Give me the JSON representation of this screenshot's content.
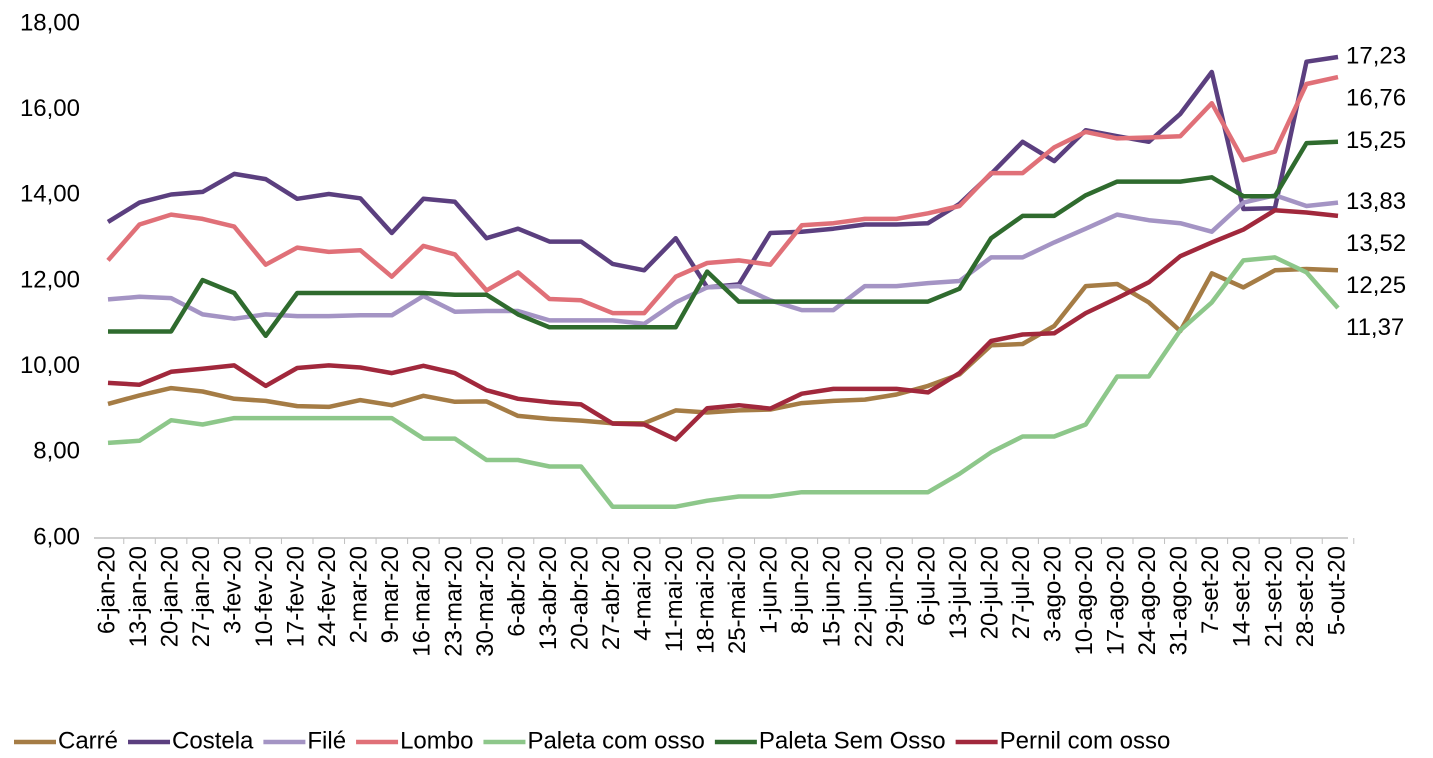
{
  "chart_data": {
    "type": "line",
    "categories": [
      "6-jan-20",
      "13-jan-20",
      "20-jan-20",
      "27-jan-20",
      "3-fev-20",
      "10-fev-20",
      "17-fev-20",
      "24-fev-20",
      "2-mar-20",
      "9-mar-20",
      "16-mar-20",
      "23-mar-20",
      "30-mar-20",
      "6-abr-20",
      "13-abr-20",
      "20-abr-20",
      "27-abr-20",
      "4-mai-20",
      "11-mai-20",
      "18-mai-20",
      "25-mai-20",
      "1-jun-20",
      "8-jun-20",
      "15-jun-20",
      "22-jun-20",
      "29-jun-20",
      "6-jul-20",
      "13-jul-20",
      "20-jul-20",
      "27-jul-20",
      "3-ago-20",
      "10-ago-20",
      "17-ago-20",
      "24-ago-20",
      "31-ago-20",
      "7-set-20",
      "14-set-20",
      "21-set-20",
      "28-set-20",
      "5-out-20"
    ],
    "ylim": [
      6,
      18
    ],
    "yticks": [
      {
        "value": 6,
        "label": "6,00"
      },
      {
        "value": 8,
        "label": "8,00"
      },
      {
        "value": 10,
        "label": "10,00"
      },
      {
        "value": 12,
        "label": "12,00"
      },
      {
        "value": 14,
        "label": "14,00"
      },
      {
        "value": 16,
        "label": "16,00"
      },
      {
        "value": 18,
        "label": "18,00"
      }
    ],
    "grid": false,
    "legend": "bottom",
    "series": [
      {
        "name": "Carré",
        "color": "#a57c45",
        "values": [
          9.13,
          9.33,
          9.5,
          9.42,
          9.25,
          9.2,
          9.08,
          9.06,
          9.22,
          9.1,
          9.32,
          9.18,
          9.19,
          8.85,
          8.78,
          8.74,
          8.68,
          8.68,
          8.98,
          8.93,
          8.98,
          9.0,
          9.15,
          9.2,
          9.23,
          9.35,
          9.55,
          9.82,
          10.5,
          10.53,
          10.95,
          11.88,
          11.93,
          11.5,
          10.83,
          12.18,
          11.85,
          12.25,
          12.28,
          12.25
        ],
        "value_labels": [
          null,
          null,
          null,
          null,
          null,
          null,
          null,
          null,
          null,
          null,
          null,
          null,
          null,
          null,
          null,
          null,
          null,
          null,
          null,
          null,
          null,
          null,
          null,
          null,
          null,
          null,
          null,
          null,
          null,
          null,
          null,
          null,
          null,
          null,
          null,
          null,
          null,
          null,
          null,
          "12,25"
        ]
      },
      {
        "name": "Costela",
        "color": "#5b3f7f",
        "values": [
          13.38,
          13.83,
          14.02,
          14.08,
          14.5,
          14.38,
          13.92,
          14.03,
          13.93,
          13.12,
          13.92,
          13.85,
          13.0,
          13.22,
          12.92,
          12.92,
          12.4,
          12.25,
          13.0,
          11.85,
          11.92,
          13.12,
          13.15,
          13.22,
          13.32,
          13.32,
          13.35,
          13.8,
          14.5,
          15.25,
          14.8,
          15.52,
          15.38,
          15.25,
          15.9,
          16.88,
          13.68,
          13.7,
          17.12,
          17.23
        ],
        "value_labels": [
          null,
          null,
          null,
          null,
          null,
          null,
          null,
          null,
          null,
          null,
          null,
          null,
          null,
          null,
          null,
          null,
          null,
          null,
          null,
          null,
          null,
          null,
          null,
          null,
          null,
          null,
          null,
          null,
          null,
          null,
          null,
          null,
          null,
          null,
          null,
          null,
          null,
          null,
          null,
          "17,23"
        ]
      },
      {
        "name": "Filé",
        "color": "#a494c4",
        "values": [
          11.57,
          11.63,
          11.6,
          11.22,
          11.12,
          11.22,
          11.18,
          11.18,
          11.2,
          11.2,
          11.65,
          11.28,
          11.3,
          11.3,
          11.08,
          11.08,
          11.08,
          11.0,
          11.5,
          11.85,
          11.88,
          11.55,
          11.32,
          11.32,
          11.88,
          11.88,
          11.95,
          12.0,
          12.55,
          12.55,
          12.9,
          13.22,
          13.55,
          13.42,
          13.35,
          13.15,
          13.83,
          14.0,
          13.75,
          13.83
        ],
        "value_labels": [
          null,
          null,
          null,
          null,
          null,
          null,
          null,
          null,
          null,
          null,
          null,
          null,
          null,
          null,
          null,
          null,
          null,
          null,
          null,
          null,
          null,
          null,
          null,
          null,
          null,
          null,
          null,
          null,
          null,
          null,
          null,
          null,
          null,
          null,
          null,
          null,
          null,
          null,
          null,
          "13,83"
        ]
      },
      {
        "name": "Lombo",
        "color": "#e07078",
        "values": [
          12.48,
          13.32,
          13.55,
          13.45,
          13.27,
          12.38,
          12.78,
          12.68,
          12.72,
          12.1,
          12.82,
          12.62,
          11.78,
          12.2,
          11.58,
          11.55,
          11.25,
          11.25,
          12.1,
          12.42,
          12.48,
          12.38,
          13.3,
          13.35,
          13.45,
          13.45,
          13.58,
          13.75,
          14.52,
          14.52,
          15.12,
          15.48,
          15.33,
          15.35,
          15.38,
          16.15,
          14.82,
          15.02,
          16.6,
          16.76
        ],
        "value_labels": [
          null,
          null,
          null,
          null,
          null,
          null,
          null,
          null,
          null,
          null,
          null,
          null,
          null,
          null,
          null,
          null,
          null,
          null,
          null,
          null,
          null,
          null,
          null,
          null,
          null,
          null,
          null,
          null,
          null,
          null,
          null,
          null,
          null,
          null,
          null,
          null,
          null,
          null,
          null,
          "16,76"
        ]
      },
      {
        "name": "Paleta com osso",
        "color": "#8dc78a",
        "values": [
          8.22,
          8.27,
          8.75,
          8.65,
          8.8,
          8.8,
          8.8,
          8.8,
          8.8,
          8.8,
          8.32,
          8.32,
          7.82,
          7.82,
          7.67,
          7.67,
          6.73,
          6.73,
          6.73,
          6.87,
          6.97,
          6.97,
          7.07,
          7.07,
          7.07,
          7.07,
          7.07,
          7.5,
          8.0,
          8.37,
          8.37,
          8.65,
          9.77,
          9.77,
          10.85,
          11.5,
          12.48,
          12.55,
          12.2,
          11.37
        ],
        "value_labels": [
          null,
          null,
          null,
          null,
          null,
          null,
          null,
          null,
          null,
          null,
          null,
          null,
          null,
          null,
          null,
          null,
          null,
          null,
          null,
          null,
          null,
          null,
          null,
          null,
          null,
          null,
          null,
          null,
          null,
          null,
          null,
          null,
          null,
          null,
          null,
          null,
          null,
          null,
          null,
          "11,37"
        ]
      },
      {
        "name": "Paleta Sem Osso",
        "color": "#2f6b2e",
        "values": [
          10.82,
          10.82,
          10.82,
          12.02,
          11.72,
          10.72,
          11.72,
          11.72,
          11.72,
          11.72,
          11.72,
          11.68,
          11.68,
          11.22,
          10.92,
          10.92,
          10.92,
          10.92,
          10.92,
          12.22,
          11.52,
          11.52,
          11.52,
          11.52,
          11.52,
          11.52,
          11.52,
          11.82,
          13.0,
          13.52,
          13.52,
          14.0,
          14.32,
          14.32,
          14.32,
          14.42,
          13.98,
          13.98,
          15.22,
          15.25
        ],
        "value_labels": [
          null,
          null,
          null,
          null,
          null,
          null,
          null,
          null,
          null,
          null,
          null,
          null,
          null,
          null,
          null,
          null,
          null,
          null,
          null,
          null,
          null,
          null,
          null,
          null,
          null,
          null,
          null,
          null,
          null,
          null,
          null,
          null,
          null,
          null,
          null,
          null,
          null,
          null,
          null,
          "15,25"
        ]
      },
      {
        "name": "Pernil com osso",
        "color": "#a1283c",
        "values": [
          9.62,
          9.58,
          9.88,
          9.95,
          10.03,
          9.55,
          9.97,
          10.03,
          9.98,
          9.85,
          10.02,
          9.85,
          9.45,
          9.25,
          9.17,
          9.12,
          8.67,
          8.65,
          8.3,
          9.03,
          9.1,
          9.02,
          9.37,
          9.48,
          9.48,
          9.48,
          9.4,
          9.85,
          10.6,
          10.75,
          10.78,
          11.25,
          11.6,
          11.97,
          12.58,
          12.9,
          13.2,
          13.65,
          13.6,
          13.52
        ],
        "value_labels": [
          null,
          null,
          null,
          null,
          null,
          null,
          null,
          null,
          null,
          null,
          null,
          null,
          null,
          null,
          null,
          null,
          null,
          null,
          null,
          null,
          null,
          null,
          null,
          null,
          null,
          null,
          null,
          null,
          null,
          null,
          null,
          null,
          null,
          null,
          null,
          null,
          null,
          null,
          null,
          "13,52"
        ]
      }
    ]
  }
}
